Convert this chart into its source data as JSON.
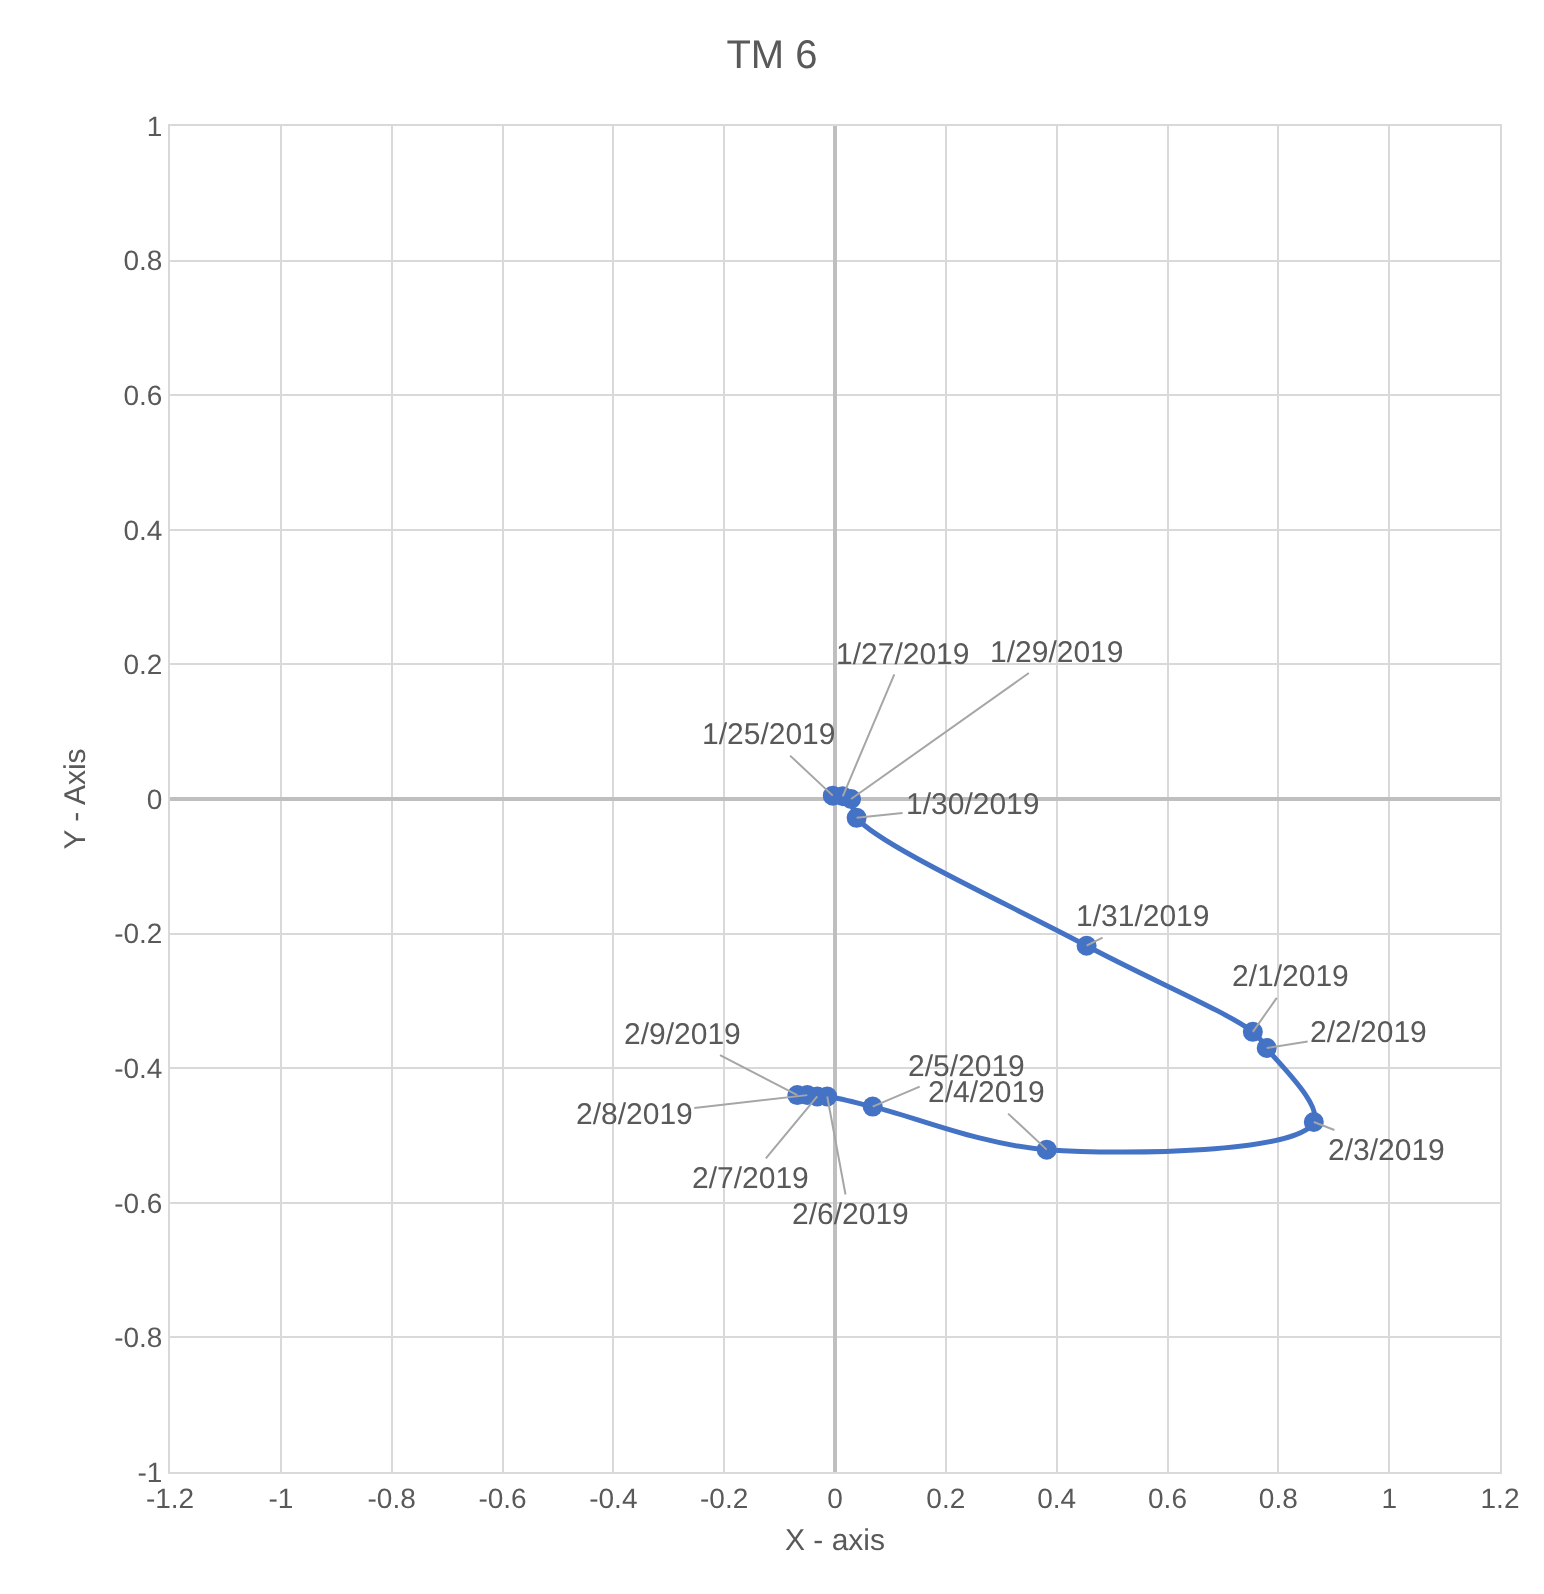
{
  "chart_data": {
    "type": "line",
    "title": "TM 6",
    "xlabel": "X - axis",
    "ylabel": "Y - Axis",
    "x": [
      -0.004,
      0.014,
      0.029,
      0.039,
      0.454,
      0.754,
      0.779,
      0.864,
      0.382,
      0.068,
      -0.014,
      -0.032,
      -0.05,
      -0.068
    ],
    "series": [
      {
        "color": "#4472c4",
        "values": [
          0.005,
          0.004,
          0.0,
          -0.028,
          -0.218,
          -0.346,
          -0.37,
          -0.48,
          -0.521,
          -0.457,
          -0.442,
          -0.442,
          -0.44,
          -0.44
        ]
      }
    ],
    "annotations": [
      {
        "text": "1/25/2019",
        "x": -0.004,
        "y": 0.005
      },
      {
        "text": "1/27/2019",
        "x": 0.014,
        "y": 0.004
      },
      {
        "text": "1/29/2019",
        "x": 0.029,
        "y": 0.0
      },
      {
        "text": "1/30/2019",
        "x": 0.039,
        "y": -0.028
      },
      {
        "text": "1/31/2019",
        "x": 0.454,
        "y": -0.218
      },
      {
        "text": "2/1/2019",
        "x": 0.754,
        "y": -0.346
      },
      {
        "text": "2/2/2019",
        "x": 0.779,
        "y": -0.37
      },
      {
        "text": "2/3/2019",
        "x": 0.864,
        "y": -0.48
      },
      {
        "text": "2/4/2019",
        "x": 0.382,
        "y": -0.521
      },
      {
        "text": "2/5/2019",
        "x": 0.068,
        "y": -0.457
      },
      {
        "text": "2/6/2019",
        "x": -0.014,
        "y": -0.442
      },
      {
        "text": "2/7/2019",
        "x": -0.032,
        "y": -0.442
      },
      {
        "text": "2/8/2019",
        "x": -0.05,
        "y": -0.44
      },
      {
        "text": "2/9/2019",
        "x": -0.068,
        "y": -0.44
      }
    ],
    "xlim": [
      -1.2,
      1.2
    ],
    "xticks": [
      -1.2,
      -1,
      -0.8,
      -0.6,
      -0.4,
      -0.2,
      0,
      0.2,
      0.4,
      0.6,
      0.8,
      1,
      1.2
    ],
    "ylim": [
      -1,
      1
    ],
    "yticks": [
      -1,
      -0.8,
      -0.6,
      -0.4,
      -0.2,
      0,
      0.2,
      0.4,
      0.6,
      0.8,
      1
    ],
    "grid": true,
    "marker": "circle",
    "line_style": "solid"
  }
}
